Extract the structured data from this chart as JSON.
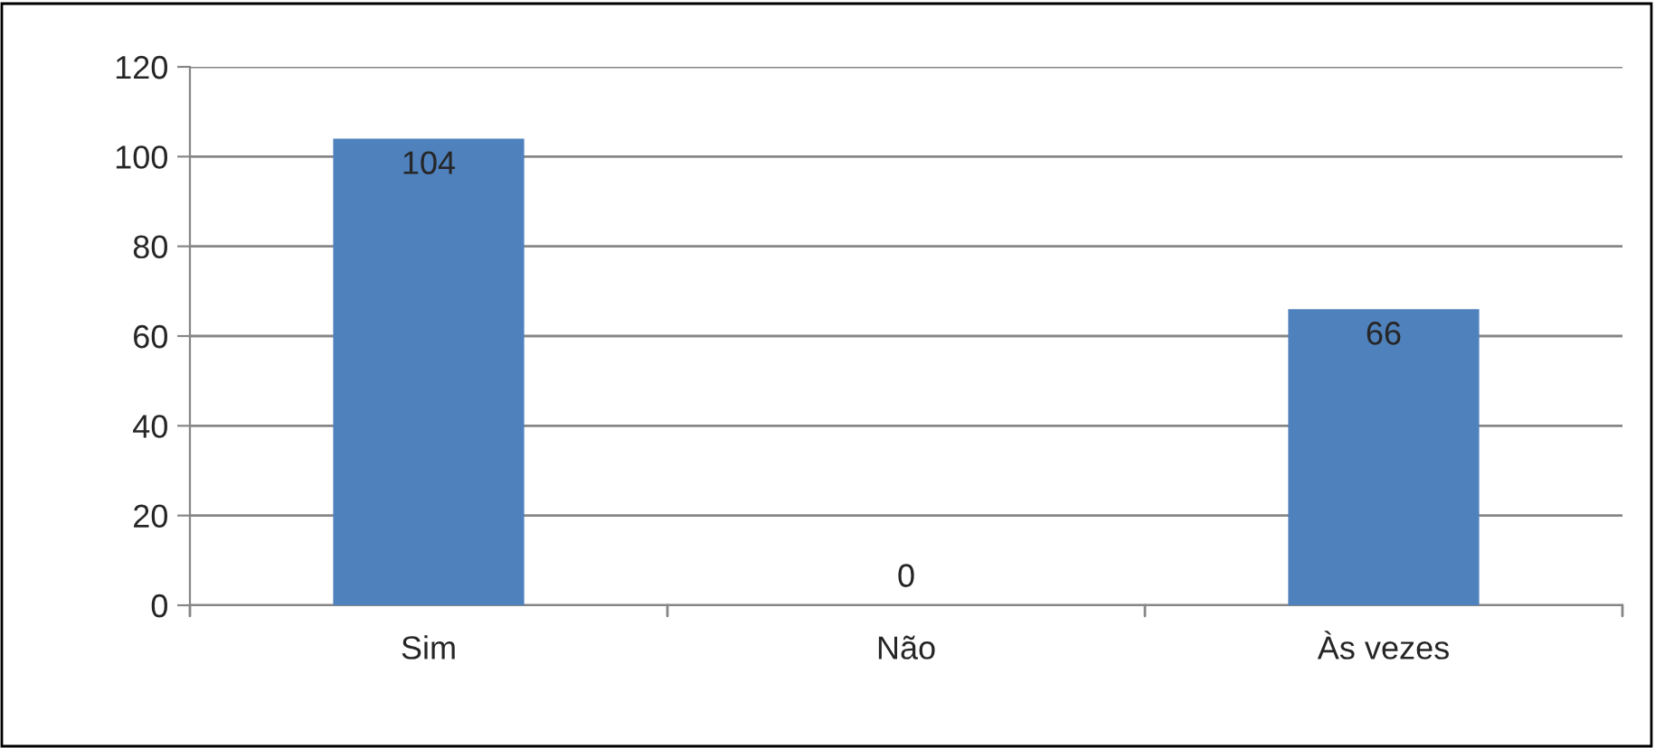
{
  "chart_data": {
    "type": "bar",
    "categories": [
      "Sim",
      "Não",
      "Às vezes"
    ],
    "values": [
      104,
      0,
      66
    ],
    "color": "#4f81bd",
    "ylim": [
      0,
      120
    ],
    "yticks": [
      0,
      20,
      40,
      60,
      80,
      100,
      120
    ],
    "grid": "y",
    "data_labels": true
  }
}
